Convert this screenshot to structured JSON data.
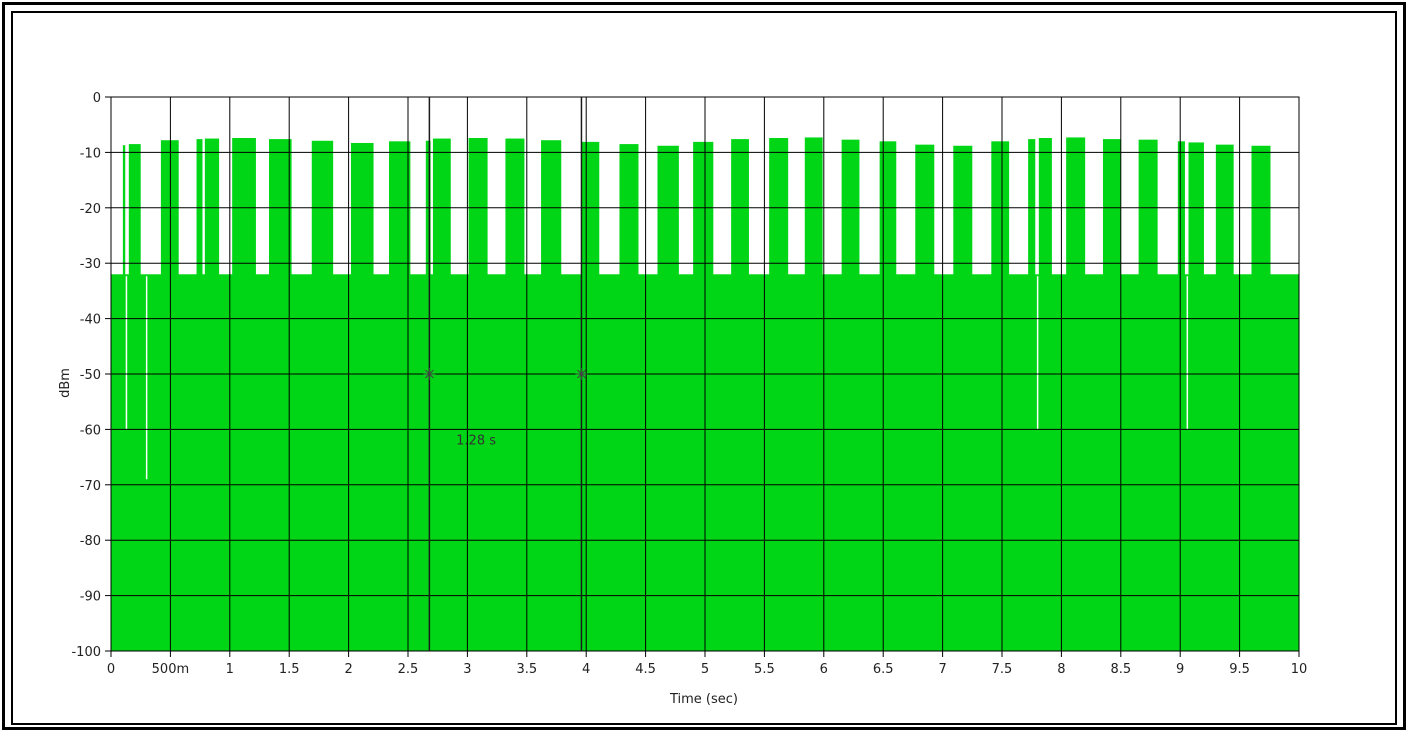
{
  "chart_data": {
    "type": "area",
    "title": "",
    "xlabel": "Time (sec)",
    "ylabel": "dBm",
    "xlim": [
      0,
      10
    ],
    "ylim": [
      -100,
      0
    ],
    "grid": true,
    "x_ticks": [
      0,
      0.5,
      1,
      1.5,
      2,
      2.5,
      3,
      3.5,
      4,
      4.5,
      5,
      5.5,
      6,
      6.5,
      7,
      7.5,
      8,
      8.5,
      9,
      9.5,
      10
    ],
    "x_tick_labels": [
      "0",
      "500m",
      "1",
      "1.5",
      "2",
      "2.5",
      "3",
      "3.5",
      "4",
      "4.5",
      "5",
      "5.5",
      "6",
      "6.5",
      "7",
      "7.5",
      "8",
      "8.5",
      "9",
      "9.5",
      "10"
    ],
    "y_ticks": [
      0,
      -10,
      -20,
      -30,
      -40,
      -50,
      -60,
      -70,
      -80,
      -90,
      -100
    ],
    "y_tick_labels": [
      "0",
      "-10",
      "-20",
      "-30",
      "-40",
      "-50",
      "-60",
      "-70",
      "-80",
      "-90",
      "-100"
    ],
    "series_color": "#00d616",
    "baseline_level_dbm": -32,
    "floor_dbm": -100,
    "bursts": [
      {
        "start": 0.1,
        "end": 0.12,
        "level": -8.7
      },
      {
        "start": 0.15,
        "end": 0.25,
        "level": -8.5
      },
      {
        "start": 0.42,
        "end": 0.57,
        "level": -7.8
      },
      {
        "start": 0.72,
        "end": 0.77,
        "level": -7.6
      },
      {
        "start": 0.79,
        "end": 0.91,
        "level": -7.5
      },
      {
        "start": 1.02,
        "end": 1.22,
        "level": -7.4
      },
      {
        "start": 1.33,
        "end": 1.52,
        "level": -7.6
      },
      {
        "start": 1.69,
        "end": 1.87,
        "level": -7.9
      },
      {
        "start": 2.02,
        "end": 2.21,
        "level": -8.3
      },
      {
        "start": 2.34,
        "end": 2.52,
        "level": -8.0
      },
      {
        "start": 2.65,
        "end": 2.69,
        "level": -7.9
      },
      {
        "start": 2.71,
        "end": 2.86,
        "level": -7.5
      },
      {
        "start": 3.01,
        "end": 3.17,
        "level": -7.4
      },
      {
        "start": 3.32,
        "end": 3.48,
        "level": -7.5
      },
      {
        "start": 3.62,
        "end": 3.79,
        "level": -7.8
      },
      {
        "start": 3.96,
        "end": 4.11,
        "level": -8.1
      },
      {
        "start": 4.28,
        "end": 4.44,
        "level": -8.5
      },
      {
        "start": 4.6,
        "end": 4.78,
        "level": -8.8
      },
      {
        "start": 4.9,
        "end": 5.07,
        "level": -8.1
      },
      {
        "start": 5.22,
        "end": 5.37,
        "level": -7.6
      },
      {
        "start": 5.54,
        "end": 5.7,
        "level": -7.4
      },
      {
        "start": 5.84,
        "end": 5.99,
        "level": -7.3
      },
      {
        "start": 6.15,
        "end": 6.3,
        "level": -7.7
      },
      {
        "start": 6.47,
        "end": 6.61,
        "level": -8.0
      },
      {
        "start": 6.77,
        "end": 6.93,
        "level": -8.6
      },
      {
        "start": 7.09,
        "end": 7.25,
        "level": -8.8
      },
      {
        "start": 7.41,
        "end": 7.56,
        "level": -8.0
      },
      {
        "start": 7.72,
        "end": 7.78,
        "level": -7.6
      },
      {
        "start": 7.81,
        "end": 7.92,
        "level": -7.4
      },
      {
        "start": 8.04,
        "end": 8.2,
        "level": -7.3
      },
      {
        "start": 8.35,
        "end": 8.5,
        "level": -7.6
      },
      {
        "start": 8.65,
        "end": 8.81,
        "level": -7.7
      },
      {
        "start": 8.98,
        "end": 9.04,
        "level": -8.0
      },
      {
        "start": 9.07,
        "end": 9.2,
        "level": -8.2
      },
      {
        "start": 9.3,
        "end": 9.45,
        "level": -8.6
      },
      {
        "start": 9.6,
        "end": 9.76,
        "level": -8.8
      }
    ],
    "dropouts": [
      {
        "x": 0.13,
        "bottom": -60
      },
      {
        "x": 0.3,
        "bottom": -69
      },
      {
        "x": 7.8,
        "bottom": -60
      },
      {
        "x": 9.06,
        "bottom": -60
      }
    ],
    "cursors": [
      {
        "x": 2.68,
        "y": -50
      },
      {
        "x": 3.96,
        "y": -50
      }
    ],
    "annotation": {
      "text": "1.28 s",
      "x": 3.25,
      "y": -62
    }
  }
}
